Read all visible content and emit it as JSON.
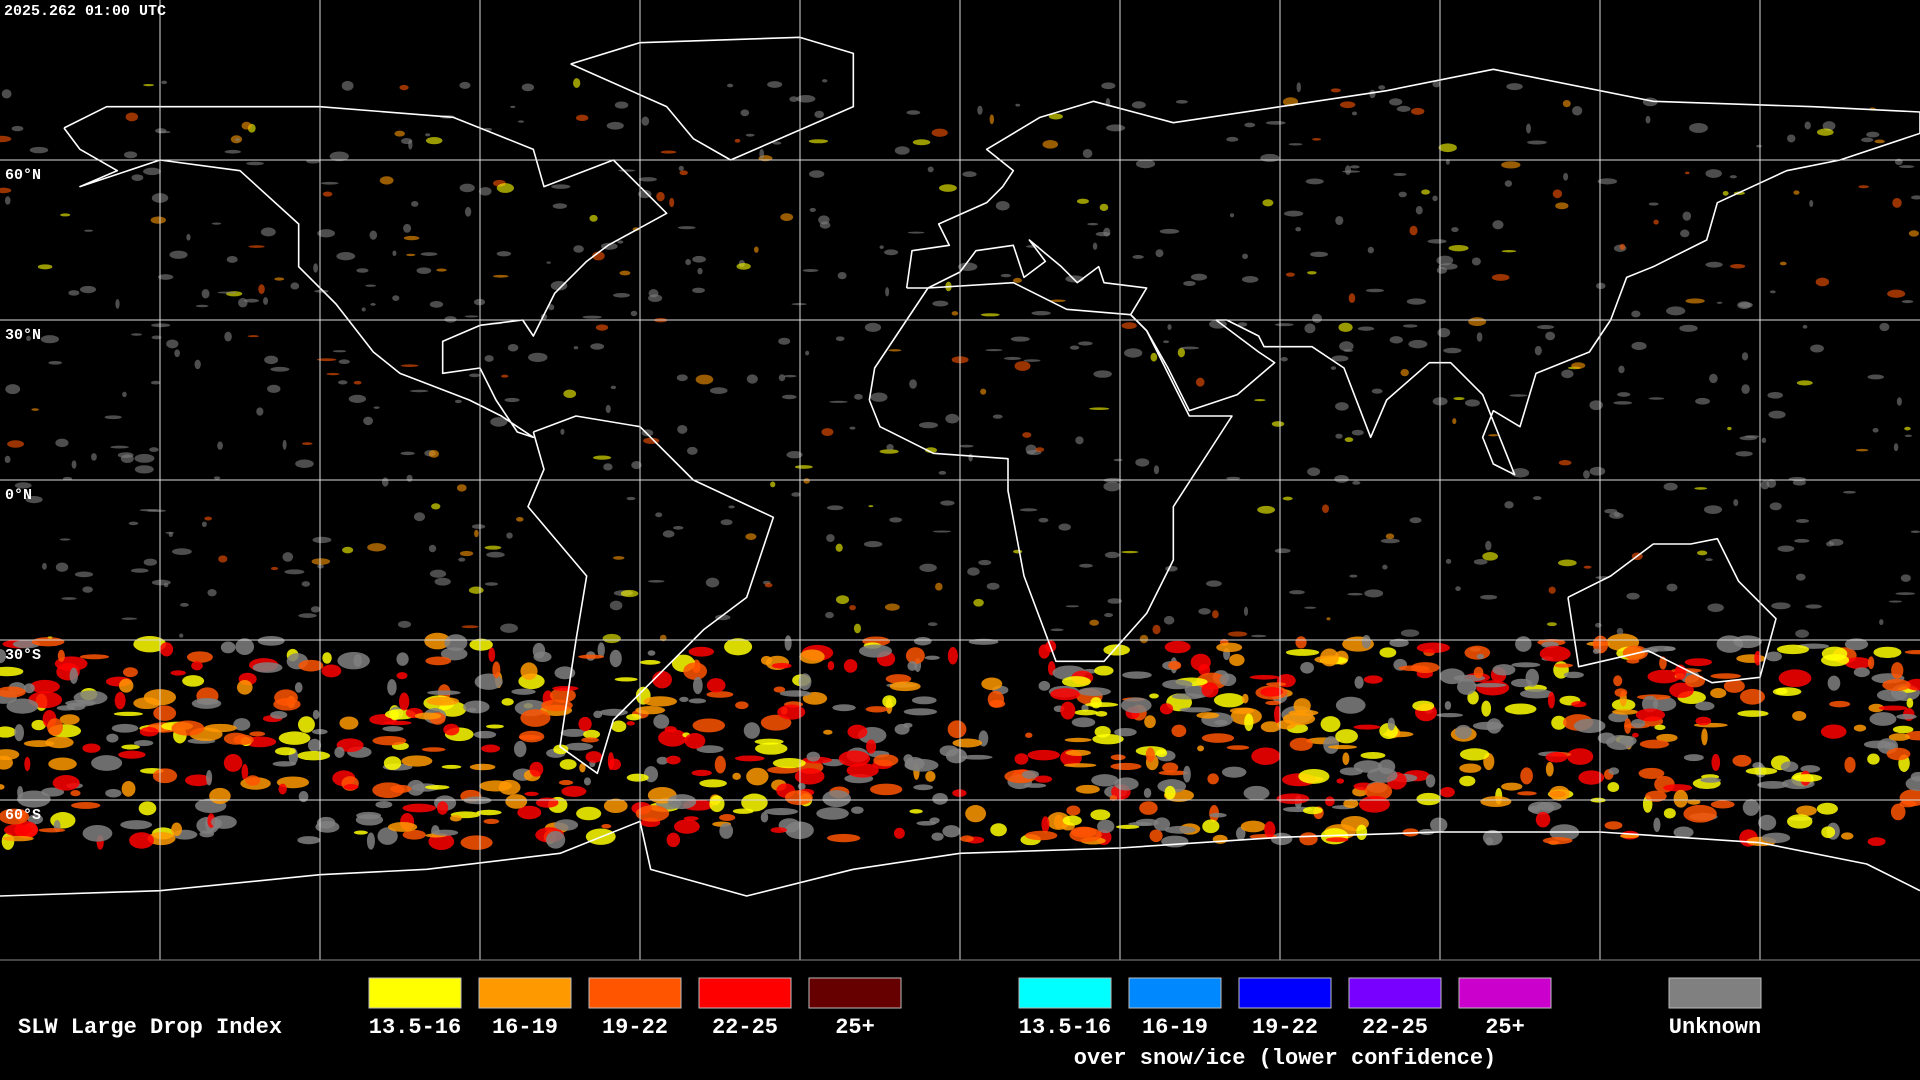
{
  "timestamp": "2025.262 01:00 UTC",
  "grid_labels": [
    "60°N",
    "30°N",
    "0°N",
    "30°S",
    "60°S"
  ],
  "legend": {
    "title": "SLW Large Drop Index",
    "groups": [
      {
        "items": [
          {
            "label": "13.5-16",
            "color": "#ffff00"
          },
          {
            "label": "16-19",
            "color": "#ff9900"
          },
          {
            "label": "19-22",
            "color": "#ff5500"
          },
          {
            "label": "22-25",
            "color": "#ff0000"
          },
          {
            "label": "25+",
            "color": "#660000"
          }
        ]
      },
      {
        "items": [
          {
            "label": "13.5-16",
            "color": "#00ffff"
          },
          {
            "label": "16-19",
            "color": "#0088ff"
          },
          {
            "label": "19-22",
            "color": "#0000ff"
          },
          {
            "label": "22-25",
            "color": "#7700ff"
          },
          {
            "label": "25+",
            "color": "#cc00cc"
          }
        ],
        "caption": "over snow/ice (lower confidence)"
      },
      {
        "items": [
          {
            "label": "Unknown",
            "color": "#808080"
          }
        ]
      }
    ]
  }
}
